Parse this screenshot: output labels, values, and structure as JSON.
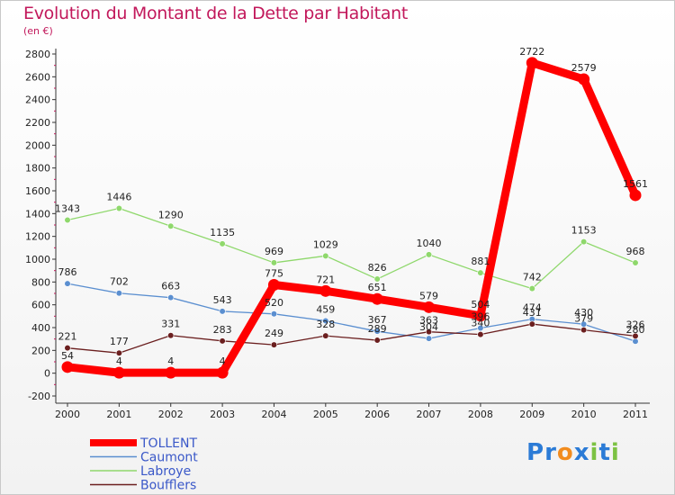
{
  "chart_data": {
    "type": "line",
    "title": "Evolution du Montant de la Dette par Habitant",
    "subtitle": "(en €)",
    "categories": [
      "2000",
      "2001",
      "2002",
      "2003",
      "2004",
      "2005",
      "2006",
      "2007",
      "2008",
      "2009",
      "2010",
      "2011"
    ],
    "ylim": [
      -200,
      2800
    ],
    "yticks": [
      -200,
      0,
      200,
      400,
      600,
      800,
      1000,
      1200,
      1400,
      1600,
      1800,
      2000,
      2200,
      2400,
      2600,
      2800
    ],
    "grid": false,
    "legend_position": "bottom-left",
    "series": [
      {
        "name": "TOLLENT",
        "color": "#ff0000",
        "values": [
          54,
          4,
          4,
          4,
          775,
          721,
          651,
          579,
          504,
          2722,
          2579,
          1561
        ]
      },
      {
        "name": "Caumont",
        "color": "#5b8fd0",
        "values": [
          786,
          702,
          663,
          543,
          520,
          459,
          367,
          304,
          396,
          474,
          430,
          280
        ]
      },
      {
        "name": "Labroye",
        "color": "#8fd86c",
        "values": [
          1343,
          1446,
          1290,
          1135,
          969,
          1029,
          826,
          1040,
          881,
          742,
          1153,
          968
        ]
      },
      {
        "name": "Boufflers",
        "color": "#6b1f1f",
        "values": [
          221,
          177,
          331,
          283,
          249,
          328,
          289,
          363,
          340,
          431,
          379,
          326
        ]
      }
    ],
    "point_labels": [
      [
        "54",
        "4",
        "4",
        "4",
        "775",
        "721",
        "651",
        "579",
        "504",
        "2722",
        "2579",
        "1561"
      ],
      [
        "786",
        "702",
        "663",
        "543",
        "520",
        "459",
        "367",
        "304",
        "396",
        "474",
        "430",
        "280"
      ],
      [
        "1343",
        "1446",
        "1290",
        "1135",
        "969",
        "1029",
        "826",
        "1040",
        "881",
        "742",
        "1153",
        "968"
      ],
      [
        "221",
        "177",
        "331",
        "283",
        "249",
        "328",
        "289",
        "363",
        "340",
        "431",
        "379",
        "326"
      ]
    ]
  },
  "logo": {
    "text": "Proxiti",
    "letters": [
      "P",
      "r",
      "o",
      "x",
      "i",
      "t",
      "i"
    ],
    "colors": [
      "#2b7bd6",
      "#2b7bd6",
      "#f28c1e",
      "#2b7bd6",
      "#7cc243",
      "#2b7bd6",
      "#7cc243"
    ]
  }
}
